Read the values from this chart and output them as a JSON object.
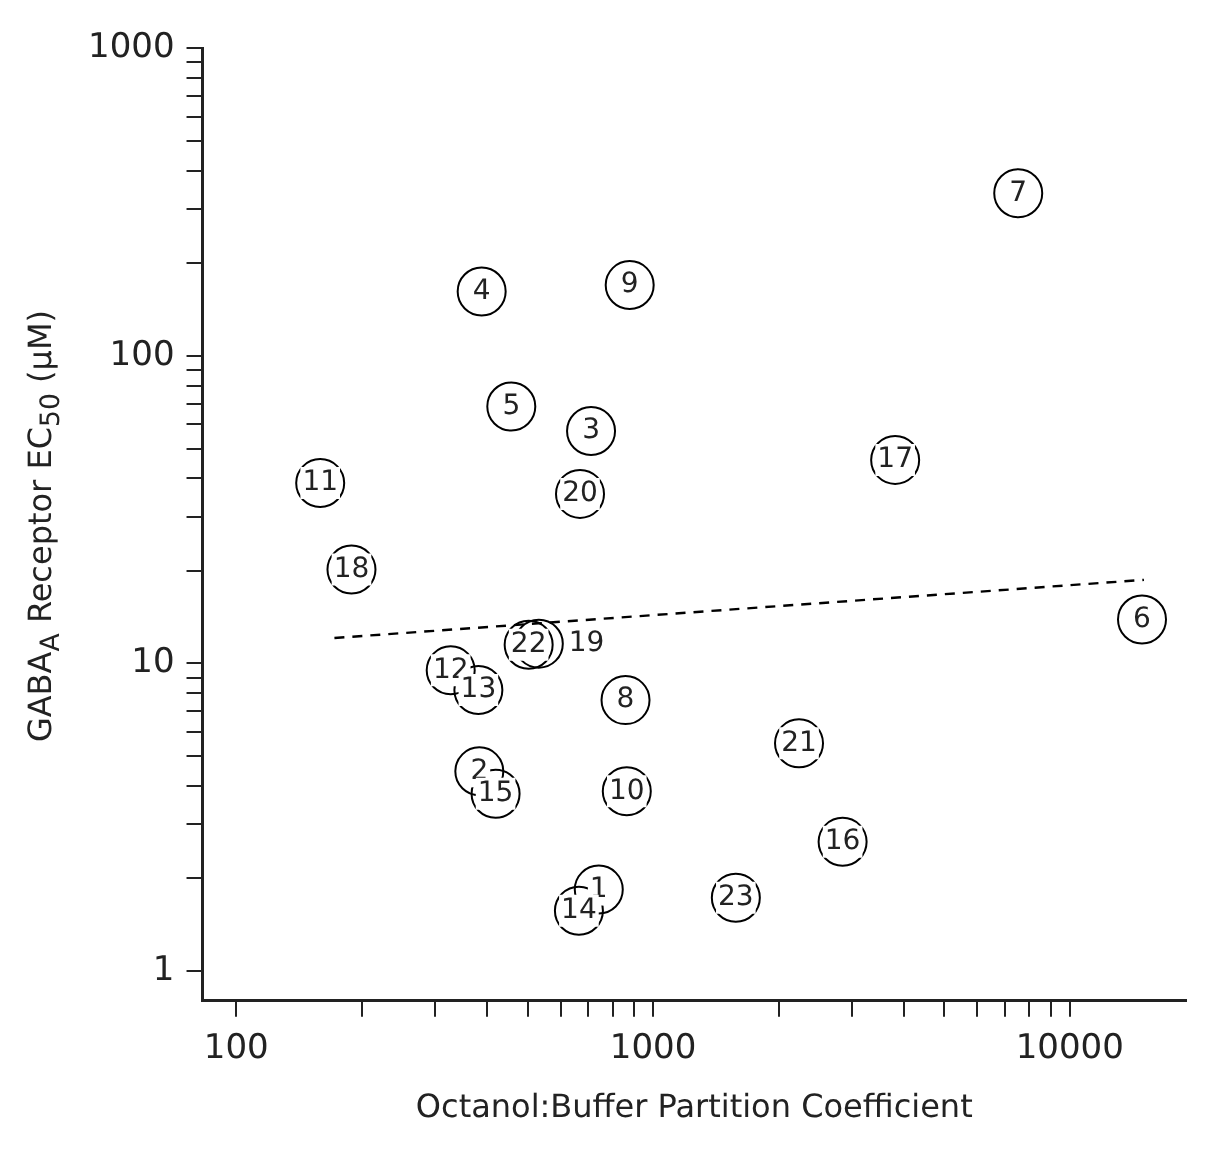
{
  "chart_data": {
    "type": "scatter",
    "xlabel": "Octanol:Buffer Partition Coefficient",
    "ylabel": "GABA$_{A}$ Receptor EC$_{50}$ (μM)",
    "log": "xy",
    "grid": false,
    "legend": false,
    "xlim": [
      83,
      19000
    ],
    "ylim": [
      0.8,
      1000
    ],
    "xticks": [
      100,
      {
        "value": 200,
        "label": null
      },
      {
        "value": 300,
        "label": null
      },
      {
        "value": 400,
        "label": null
      },
      {
        "value": 500,
        "label": null
      },
      {
        "value": 600,
        "label": null
      },
      {
        "value": 700,
        "label": null
      },
      {
        "value": 800,
        "label": null
      },
      {
        "value": 900,
        "label": null
      },
      1000,
      {
        "value": 2000,
        "label": null
      },
      {
        "value": 3000,
        "label": null
      },
      {
        "value": 4000,
        "label": null
      },
      {
        "value": 5000,
        "label": null
      },
      {
        "value": 6000,
        "label": null
      },
      {
        "value": 7000,
        "label": null
      },
      {
        "value": 8000,
        "label": null
      },
      {
        "value": 9000,
        "label": null
      },
      10000
    ],
    "yticks": [
      1,
      {
        "value": 2,
        "label": null
      },
      {
        "value": 3,
        "label": null
      },
      {
        "value": 4,
        "label": null
      },
      {
        "value": 5,
        "label": null
      },
      {
        "value": 6,
        "label": null
      },
      {
        "value": 7,
        "label": null
      },
      {
        "value": 8,
        "label": null
      },
      {
        "value": 9,
        "label": null
      },
      10,
      {
        "value": 20,
        "label": null
      },
      {
        "value": 30,
        "label": null
      },
      {
        "value": 40,
        "label": null
      },
      {
        "value": 50,
        "label": null
      },
      {
        "value": 60,
        "label": null
      },
      {
        "value": 70,
        "label": null
      },
      {
        "value": 80,
        "label": null
      },
      {
        "value": 90,
        "label": null
      },
      100,
      {
        "value": 200,
        "label": null
      },
      {
        "value": 300,
        "label": null
      },
      {
        "value": 400,
        "label": null
      },
      {
        "value": 500,
        "label": null
      },
      {
        "value": 600,
        "label": null
      },
      {
        "value": 700,
        "label": null
      },
      {
        "value": 800,
        "label": null
      },
      {
        "value": 900,
        "label": null
      },
      1000
    ],
    "series": [
      {
        "color": "#000000",
        "marker": "circle",
        "x": [
          741,
          383,
          710,
          388,
          457,
          14900,
          7520,
          859,
          879,
          865,
          159,
          327,
          381,
          664,
          419,
          2850,
          3810,
          189,
          532,
          668,
          2240,
          503,
          1580
        ],
        "values": [
          1.84,
          4.46,
          57,
          162,
          68.5,
          13.9,
          338,
          7.6,
          170,
          3.84,
          38.6,
          9.5,
          8.2,
          1.57,
          3.77,
          2.63,
          45.9,
          20.2,
          11.6,
          35.6,
          5.5,
          11.5,
          1.73
        ]
      },
      {
        "type": "line",
        "color": "#000000",
        "marker": "none",
        "line_style": "dashed",
        "x": [
          172,
          15060
        ],
        "values": [
          12.1,
          18.7
        ]
      }
    ],
    "annotations": [
      {
        "text": "1",
        "x": 741,
        "y": 1.84
      },
      {
        "text": "2",
        "x": 383,
        "y": 4.46
      },
      {
        "text": "3",
        "x": 710,
        "y": 57
      },
      {
        "text": "4",
        "x": 388,
        "y": 162
      },
      {
        "text": "5",
        "x": 457,
        "y": 68.5
      },
      {
        "text": "6",
        "x": 14900,
        "y": 13.9
      },
      {
        "text": "7",
        "x": 7520,
        "y": 338
      },
      {
        "text": "8",
        "x": 859,
        "y": 7.6
      },
      {
        "text": "9",
        "x": 879,
        "y": 170
      },
      {
        "text": "10",
        "x": 865,
        "y": 3.84
      },
      {
        "text": "11",
        "x": 159,
        "y": 38.6
      },
      {
        "text": "12",
        "x": 327,
        "y": 9.5
      },
      {
        "text": "13",
        "x": 381,
        "y": 8.2
      },
      {
        "text": "14",
        "x": 664,
        "y": 1.57
      },
      {
        "text": "15",
        "x": 419,
        "y": 3.77
      },
      {
        "text": "16",
        "x": 2850,
        "y": 2.63
      },
      {
        "text": "17",
        "x": 3810,
        "y": 45.9
      },
      {
        "text": "18",
        "x": 189,
        "y": 20.2
      },
      {
        "text": "22",
        "x": 503,
        "y": 11.5
      },
      {
        "text": "19",
        "x": 532,
        "y": 11.6
      },
      {
        "text": "20",
        "x": 668,
        "y": 35.6
      },
      {
        "text": "21",
        "x": 2240,
        "y": 5.5
      },
      {
        "text": "23",
        "x": 1580,
        "y": 1.73
      }
    ]
  }
}
